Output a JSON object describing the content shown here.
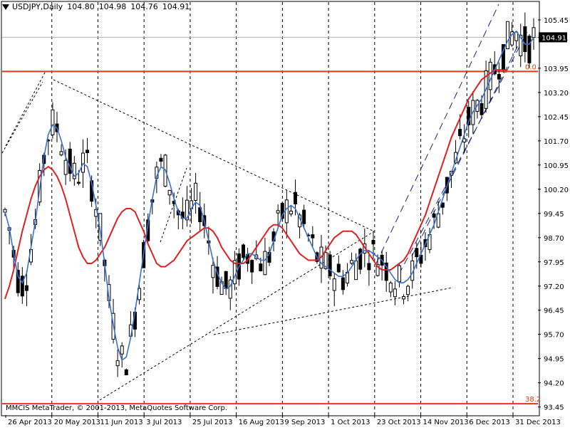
{
  "header": {
    "symbol": "USDJPY,Daily",
    "open": "104.80",
    "high": "104.98",
    "low": "104.76",
    "close": "104.91"
  },
  "copyright": "MMCIS MetaTrader, © 2001-2013, MetaQuotes Software Corp.",
  "colors": {
    "background": "#ffffff",
    "candle_bull": "#ffffff",
    "candle_bear": "#000000",
    "fast_ma": "#3a6fd0",
    "slow_ma": "#e02020",
    "fib_line": "#e03a10",
    "grid": "#000000"
  },
  "chart_data": {
    "type": "candlestick",
    "ylim": [
      93.2,
      106.0
    ],
    "y_ticks": [
      "105.45",
      "104.91",
      "103.95",
      "103.20",
      "102.45",
      "101.70",
      "100.95",
      "100.20",
      "99.45",
      "98.70",
      "97.95",
      "97.20",
      "96.45",
      "95.70",
      "94.95",
      "94.20",
      "93.45"
    ],
    "x_labels": [
      "26 Apr 2013",
      "20 May 2013",
      "11 Jun 2013",
      "3 Jul 2013",
      "25 Jul 2013",
      "16 Aug 2013",
      "9 Sep 2013",
      "1 Oct 2013",
      "23 Oct 2013",
      "14 Nov 2013",
      "6 Dec 2013",
      "31 Dec 2013"
    ],
    "current_price": 104.91,
    "fib_levels": [
      {
        "label": "0.0",
        "price": 103.85
      },
      {
        "label": "38.2",
        "price": 93.55
      }
    ],
    "fast_ma": [
      99.5,
      99.0,
      98.2,
      97.5,
      97.3,
      97.6,
      98.4,
      99.2,
      100.2,
      101.2,
      101.9,
      102.2,
      102.1,
      101.7,
      101.2,
      100.9,
      100.6,
      100.7,
      101.0,
      100.9,
      100.4,
      99.7,
      98.9,
      97.9,
      96.8,
      96.0,
      95.3,
      94.9,
      95.0,
      95.6,
      96.4,
      97.3,
      98.2,
      99.1,
      99.9,
      100.6,
      100.9,
      100.8,
      100.4,
      99.9,
      99.5,
      99.3,
      99.3,
      99.6,
      99.8,
      99.7,
      99.2,
      98.6,
      98.0,
      97.6,
      97.3,
      97.1,
      97.2,
      97.5,
      97.8,
      98.0,
      98.2,
      98.2,
      98.1,
      98.0,
      98.0,
      98.2,
      98.6,
      99.0,
      99.4,
      99.6,
      99.7,
      99.6,
      99.3,
      99.0,
      98.7,
      98.4,
      98.1,
      97.9,
      97.8,
      97.7,
      97.6,
      97.5,
      97.5,
      97.6,
      97.8,
      98.0,
      98.2,
      98.3,
      98.3,
      98.2,
      98.1,
      98.0,
      97.8,
      97.6,
      97.4,
      97.3,
      97.3,
      97.4,
      97.6,
      97.9,
      98.2,
      98.5,
      98.8,
      99.1,
      99.5,
      99.9,
      100.3,
      100.7,
      101.1,
      101.5,
      101.9,
      102.3,
      102.6,
      102.8,
      103.0,
      103.3,
      103.6,
      103.9,
      104.2,
      104.5,
      104.8,
      105.0,
      105.1,
      104.9,
      104.7,
      104.7,
      104.9
    ],
    "slow_ma": [
      96.8,
      97.2,
      97.7,
      98.3,
      98.9,
      99.4,
      99.9,
      100.3,
      100.6,
      100.8,
      100.9,
      100.8,
      100.6,
      100.3,
      99.9,
      99.4,
      98.9,
      98.4,
      98.1,
      97.9,
      97.9,
      98.0,
      98.2,
      98.4,
      98.7,
      99.0,
      99.3,
      99.5,
      99.6,
      99.6,
      99.5,
      99.2,
      98.9,
      98.5,
      98.2,
      97.9,
      97.8,
      97.8,
      97.9,
      98.0,
      98.2,
      98.4,
      98.6,
      98.7,
      98.8,
      98.9,
      99.0,
      99.0,
      98.9,
      98.7,
      98.4,
      98.2,
      98.0,
      97.9,
      97.9,
      97.9,
      98.0,
      98.2,
      98.4,
      98.6,
      98.8,
      99.0,
      99.1,
      99.1,
      99.0,
      98.8,
      98.6,
      98.4,
      98.2,
      98.1,
      98.0,
      98.0,
      98.0,
      98.1,
      98.3,
      98.5,
      98.7,
      98.8,
      98.9,
      98.9,
      98.9,
      98.8,
      98.6,
      98.4,
      98.2,
      98.0,
      97.8,
      97.7,
      97.7,
      97.7,
      97.8,
      97.9,
      98.0,
      98.2,
      98.5,
      98.8,
      99.1,
      99.4,
      99.8,
      100.2,
      100.6,
      101.0,
      101.4,
      101.8,
      102.1,
      102.4,
      102.7,
      103.0,
      103.2,
      103.4,
      103.6,
      103.7,
      103.8,
      103.9,
      103.9,
      103.9,
      103.9
    ]
  }
}
